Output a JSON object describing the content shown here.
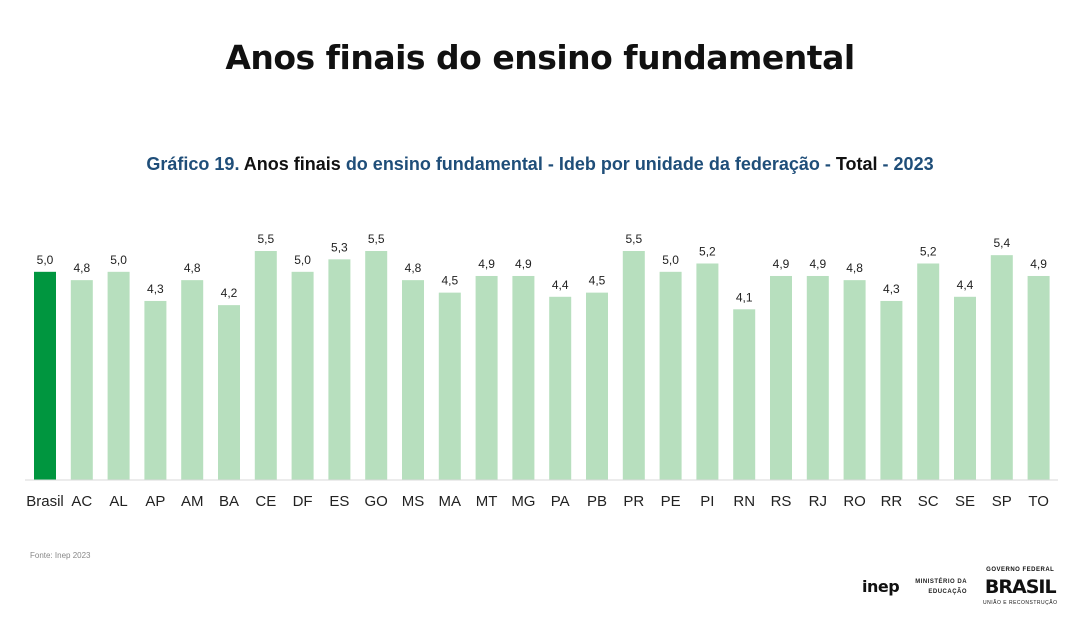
{
  "page_title": "Anos finais do ensino fundamental",
  "subtitle": {
    "parts": [
      {
        "text": "Gráfico 19.",
        "tone": "blue"
      },
      {
        "text": " Anos finais",
        "tone": "dark"
      },
      {
        "text": " do ensino fundamental - Ideb por unidade da federação - ",
        "tone": "blue"
      },
      {
        "text": "Total",
        "tone": "dark"
      },
      {
        "text": " - ",
        "tone": "blue"
      },
      {
        "text": "2023",
        "tone": "blue"
      }
    ]
  },
  "source": "Fonte: Inep 2023",
  "logos": {
    "inep": "inep",
    "mec_line1": "MINISTÉRIO DA",
    "mec_line2": "EDUCAÇÃO",
    "gov_line1": "GOVERNO FEDERAL",
    "gov_line2": "BRASIL",
    "gov_line3": "UNIÃO E RECONSTRUÇÃO"
  },
  "colors": {
    "highlight": "#00963f",
    "bar": "#b7dfbe",
    "subtitle_blue": "#1f4e79"
  },
  "chart_data": {
    "type": "bar",
    "title": "Gráfico 19. Anos finais do ensino fundamental - Ideb por unidade da federação - Total - 2023",
    "categories": [
      "Brasil",
      "AC",
      "AL",
      "AP",
      "AM",
      "BA",
      "CE",
      "DF",
      "ES",
      "GO",
      "MS",
      "MA",
      "MT",
      "MG",
      "PA",
      "PB",
      "PR",
      "PE",
      "PI",
      "RN",
      "RS",
      "RJ",
      "RO",
      "RR",
      "SC",
      "SE",
      "SP",
      "TO"
    ],
    "values": [
      5.0,
      4.8,
      5.0,
      4.3,
      4.8,
      4.2,
      5.5,
      5.0,
      5.3,
      5.5,
      4.8,
      4.5,
      4.9,
      4.9,
      4.4,
      4.5,
      5.5,
      5.0,
      5.2,
      4.1,
      4.9,
      4.9,
      4.8,
      4.3,
      5.2,
      4.4,
      5.4,
      4.9
    ],
    "data_labels": [
      "5,0",
      "4,8",
      "5,0",
      "4,3",
      "4,8",
      "4,2",
      "5,5",
      "5,0",
      "5,3",
      "5,5",
      "4,8",
      "4,5",
      "4,9",
      "4,9",
      "4,4",
      "4,5",
      "5,5",
      "5,0",
      "5,2",
      "4,1",
      "4,9",
      "4,9",
      "4,8",
      "4,3",
      "5,2",
      "4,4",
      "5,4",
      "4,9"
    ],
    "highlight_category": "Brasil",
    "ylim": [
      0,
      5.5
    ],
    "grid": false,
    "legend": "none",
    "xlabel": "",
    "ylabel": ""
  }
}
